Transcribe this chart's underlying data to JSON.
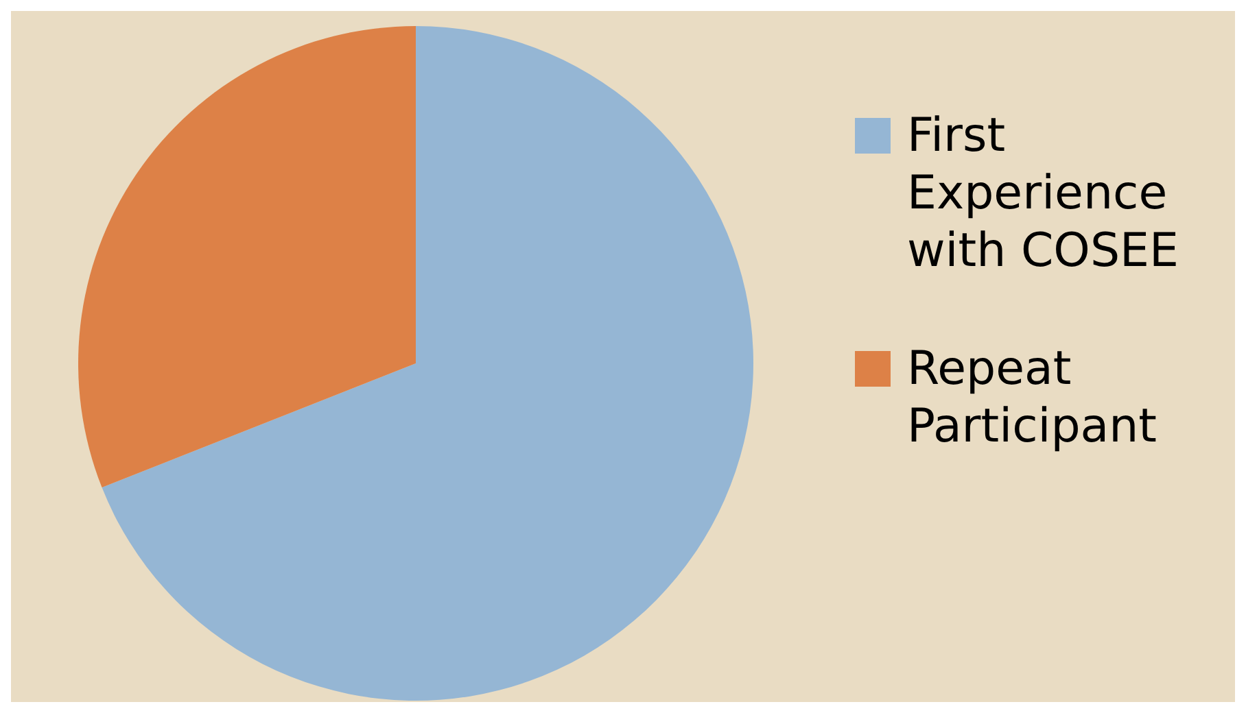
{
  "chart_data": {
    "type": "pie",
    "categories": [
      "First Experience with COSEE",
      "Repeat Participant"
    ],
    "values": [
      69,
      31
    ],
    "colors": [
      "#95b6d4",
      "#dd8147"
    ],
    "legend": "right"
  }
}
